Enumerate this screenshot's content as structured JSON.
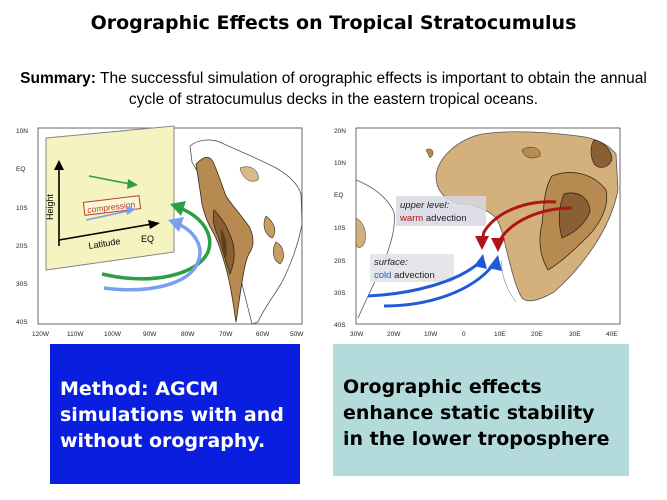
{
  "title": "Orographic Effects on Tropical Stratocumulus",
  "summary": {
    "label": "Summary:",
    "text": "The successful simulation of orographic effects is important to obtain the annual cycle of stratocumulus decks in the eastern tropical oceans."
  },
  "left_map": {
    "lat_ticks": [
      "10N",
      "EQ",
      "10S",
      "20S",
      "30S",
      "40S"
    ],
    "lon_ticks": [
      "120W",
      "110W",
      "100W",
      "90W",
      "80W",
      "70W",
      "60W",
      "50W"
    ],
    "inset": {
      "y_label": "Height",
      "x_label": "Latitude",
      "x_end_label": "EQ",
      "box_label": "compression",
      "background": "#f5f3bf",
      "box_color": "#c0392b"
    },
    "arrow_colors": [
      "#2e9e44",
      "#7a9ff0"
    ]
  },
  "right_map": {
    "lat_ticks": [
      "20N",
      "10N",
      "EQ",
      "10S",
      "20S",
      "30S",
      "40S"
    ],
    "lon_ticks": [
      "30W",
      "20W",
      "10W",
      "0",
      "10E",
      "20E",
      "30E",
      "40E"
    ],
    "upper_label": {
      "line1": "upper level:",
      "line2_colored": "warm",
      "line2_rest": " advection"
    },
    "surface_label": {
      "line1": "surface:",
      "line2_colored": "cold",
      "line2_rest": " advection"
    },
    "warm_color": "#b01515",
    "cold_color": "#1f5ad8"
  },
  "land_color": "#b78a52",
  "method": {
    "lines": [
      "Method: AGCM",
      "simulations with and",
      "without orography."
    ],
    "background": "#0a1ee0"
  },
  "conclusion": {
    "lines": [
      "Orographic effects",
      "enhance static stability",
      "in the lower troposphere"
    ],
    "background": "#b3dbdc"
  }
}
